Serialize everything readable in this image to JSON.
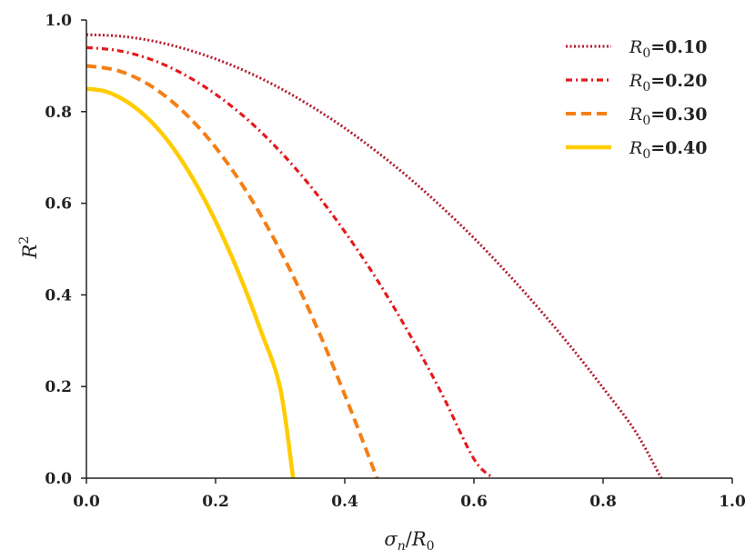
{
  "chart_data": {
    "type": "line",
    "title": "",
    "xlabel": "σ_n/R_0",
    "ylabel": "R^2",
    "xlim": [
      0.0,
      1.0
    ],
    "ylim": [
      0.0,
      1.0
    ],
    "xticks": [
      "0.0",
      "0.2",
      "0.4",
      "0.6",
      "0.8",
      "1.0"
    ],
    "yticks": [
      "0.0",
      "0.2",
      "0.4",
      "0.6",
      "0.8",
      "1.0"
    ],
    "grid": false,
    "legend_position": "top-right",
    "series": [
      {
        "name": "R_0=0.10",
        "legend_symbol": "R",
        "legend_sub": "0",
        "legend_value": "=0.10",
        "style": "dotted",
        "color": "#b2182b",
        "x": [
          0.0,
          0.05,
          0.1,
          0.15,
          0.2,
          0.25,
          0.3,
          0.35,
          0.4,
          0.45,
          0.5,
          0.55,
          0.6,
          0.65,
          0.7,
          0.75,
          0.8,
          0.85,
          0.89
        ],
        "y": [
          0.968,
          0.965,
          0.955,
          0.938,
          0.915,
          0.886,
          0.851,
          0.81,
          0.764,
          0.712,
          0.655,
          0.592,
          0.524,
          0.45,
          0.371,
          0.287,
          0.197,
          0.102,
          0.0
        ]
      },
      {
        "name": "R_0=0.20",
        "legend_symbol": "R",
        "legend_sub": "0",
        "legend_value": "=0.20",
        "style": "dashdot",
        "color": "#e41a1c",
        "x": [
          0.0,
          0.05,
          0.1,
          0.15,
          0.2,
          0.25,
          0.3,
          0.35,
          0.4,
          0.45,
          0.5,
          0.55,
          0.6,
          0.63
        ],
        "y": [
          0.94,
          0.933,
          0.914,
          0.882,
          0.838,
          0.782,
          0.713,
          0.632,
          0.538,
          0.433,
          0.315,
          0.185,
          0.042,
          0.0
        ]
      },
      {
        "name": "R_0=0.30",
        "legend_symbol": "R",
        "legend_sub": "0",
        "legend_value": "=0.30",
        "style": "dashed",
        "color": "#f57f17",
        "x": [
          0.0,
          0.05,
          0.1,
          0.15,
          0.2,
          0.25,
          0.3,
          0.35,
          0.4,
          0.45
        ],
        "y": [
          0.9,
          0.889,
          0.856,
          0.8,
          0.722,
          0.621,
          0.497,
          0.351,
          0.182,
          0.0
        ]
      },
      {
        "name": "R_0=0.40",
        "legend_symbol": "R",
        "legend_sub": "0",
        "legend_value": "=0.40",
        "style": "solid",
        "color": "#ffcc00",
        "x": [
          0.0,
          0.03,
          0.06,
          0.09,
          0.12,
          0.15,
          0.18,
          0.21,
          0.24,
          0.27,
          0.3,
          0.32
        ],
        "y": [
          0.85,
          0.844,
          0.824,
          0.792,
          0.747,
          0.688,
          0.616,
          0.531,
          0.433,
          0.322,
          0.197,
          0.0
        ]
      }
    ]
  }
}
